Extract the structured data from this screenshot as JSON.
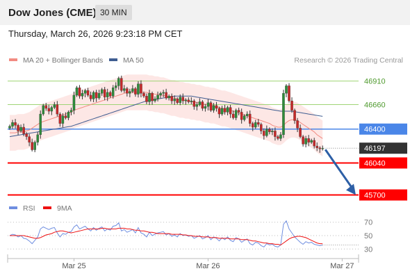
{
  "header": {
    "title": "Dow Jones (CME)",
    "timeframe": "30 MIN"
  },
  "timestamp": "Thursday, March 26, 2026 9:23:18 PM CET",
  "colors": {
    "up": "#2e8b3a",
    "down": "#c62828",
    "current_price": "#333333",
    "support": "#ff0000",
    "pivot": "#4a86e8",
    "resistance_line": "#9fd475",
    "resistance_text": "#4f9a2e",
    "ma20": "#f28b82",
    "bollinger_fill": "#fde3e1",
    "ma50": "#3f5d91",
    "rsi": "#6f8ee0",
    "rsi_ma": "#ee1111",
    "forecast_arrow": "#2d5fa6"
  },
  "chart_data": [
    {
      "type": "line",
      "title": "",
      "legend": [
        {
          "label": "MA 20 + Bollinger Bands",
          "color": "#f28b82"
        },
        {
          "label": "MA 50",
          "color": "#3f5d91"
        }
      ],
      "credit": "Research © 2026 Trading Central",
      "x_ticks": [
        {
          "label": "Mar 25",
          "index": 23
        },
        {
          "label": "Mar 26",
          "index": 71
        },
        {
          "label": "Mar 27",
          "index": 119
        }
      ],
      "ylim": [
        45630,
        47070
      ],
      "price_levels": [
        {
          "label": "46910",
          "value": 46910,
          "kind": "resistance"
        },
        {
          "label": "46660",
          "value": 46660,
          "kind": "resistance"
        },
        {
          "label": "46400",
          "value": 46400,
          "kind": "pivot"
        },
        {
          "label": "46197",
          "value": 46197,
          "kind": "current"
        },
        {
          "label": "46040",
          "value": 46040,
          "kind": "support"
        },
        {
          "label": "45700",
          "value": 45700,
          "kind": "support"
        }
      ],
      "forecast_target": 45700,
      "close": [
        46430,
        46470,
        46440,
        46380,
        46420,
        46350,
        46320,
        46260,
        46180,
        46260,
        46340,
        46560,
        46650,
        46620,
        46590,
        46630,
        46660,
        46560,
        46460,
        46540,
        46520,
        46580,
        46600,
        46760,
        46840,
        46750,
        46780,
        46810,
        46760,
        46720,
        46790,
        46730,
        46780,
        46820,
        46740,
        46790,
        46750,
        46840,
        46860,
        46940,
        46810,
        46830,
        46780,
        46800,
        46830,
        46770,
        46880,
        46780,
        46750,
        46690,
        46780,
        46700,
        46720,
        46760,
        46780,
        46790,
        46730,
        46750,
        46700,
        46720,
        46680,
        46740,
        46700,
        46710,
        46690,
        46700,
        46640,
        46660,
        46690,
        46620,
        46640,
        46680,
        46600,
        46650,
        46620,
        46560,
        46620,
        46580,
        46630,
        46560,
        46520,
        46600,
        46580,
        46500,
        46540,
        46560,
        46460,
        46420,
        46470,
        46450,
        46380,
        46330,
        46400,
        46370,
        46380,
        46320,
        46300,
        46340,
        46780,
        46860,
        46700,
        46600,
        46490,
        46410,
        46320,
        46240,
        46300,
        46260,
        46280,
        46220,
        46200,
        46190,
        46197
      ],
      "ma20": [
        46360,
        46360,
        46360,
        46370,
        46370,
        46370,
        46380,
        46390,
        46410,
        46430,
        46450,
        46470,
        46480,
        46490,
        46500,
        46510,
        46520,
        46530,
        46540,
        46550,
        46560,
        46570,
        46580,
        46600,
        46610,
        46620,
        46630,
        46640,
        46650,
        46660,
        46670,
        46680,
        46690,
        46700,
        46710,
        46720,
        46730,
        46740,
        46750,
        46760,
        46770,
        46780,
        46790,
        46790,
        46790,
        46790,
        46790,
        46790,
        46790,
        46790,
        46780,
        46780,
        46770,
        46770,
        46760,
        46760,
        46750,
        46740,
        46730,
        46730,
        46720,
        46710,
        46710,
        46700,
        46700,
        46690,
        46690,
        46680,
        46680,
        46670,
        46660,
        46660,
        46650,
        46650,
        46640,
        46630,
        46620,
        46620,
        46610,
        46600,
        46590,
        46580,
        46570,
        46560,
        46550,
        46540,
        46530,
        46520,
        46510,
        46500,
        46490,
        46480,
        46470,
        46460,
        46440,
        46430,
        46420,
        46420,
        46440,
        46470,
        46490,
        46500,
        46500,
        46490,
        46470,
        46450,
        46430,
        46410,
        46390,
        46370,
        46340,
        46320,
        46300
      ],
      "bb_width": 190,
      "ma50": [
        46320,
        46325,
        46330,
        46335,
        46340,
        46345,
        46350,
        46355,
        46360,
        46365,
        46370,
        46375,
        46380,
        46385,
        46390,
        46395,
        46400,
        46405,
        46410,
        46415,
        46420,
        46425,
        46430,
        46440,
        46450,
        46460,
        46470,
        46480,
        46490,
        46500,
        46510,
        46520,
        46530,
        46540,
        46550,
        46560,
        46570,
        46580,
        46590,
        46600,
        46610,
        46620,
        46630,
        46640,
        46650,
        46660,
        46670,
        46680,
        46690,
        46700,
        46705,
        46710,
        46715,
        46720,
        46725,
        46730,
        46735,
        46740,
        46745,
        46750,
        46750,
        46750,
        46750,
        46750,
        46750,
        46750,
        46745,
        46740,
        46735,
        46730,
        46725,
        46720,
        46715,
        46710,
        46705,
        46700,
        46695,
        46690,
        46685,
        46680,
        46675,
        46670,
        46665,
        46660,
        46655,
        46650,
        46645,
        46640,
        46635,
        46630,
        46625,
        46620,
        46615,
        46610,
        46605,
        46600,
        46595,
        46590,
        46590,
        46590,
        46590,
        46590,
        46585,
        46580,
        46575,
        46570,
        46565,
        46560,
        46555,
        46550,
        46545,
        46540,
        46535
      ]
    },
    {
      "type": "line",
      "title": "",
      "legend": [
        {
          "label": "RSI",
          "color": "#6f8ee0"
        },
        {
          "label": "9MA",
          "color": "#ee1111"
        }
      ],
      "ylim": [
        22,
        78
      ],
      "y_ticks": [
        {
          "label": "70",
          "value": 70
        },
        {
          "label": "50",
          "value": 50
        },
        {
          "label": "30",
          "value": 30
        }
      ],
      "rsi": [
        50,
        52,
        51,
        48,
        50,
        46,
        45,
        42,
        38,
        43,
        48,
        60,
        63,
        61,
        59,
        61,
        62,
        54,
        48,
        53,
        52,
        55,
        56,
        63,
        66,
        60,
        62,
        64,
        60,
        57,
        62,
        58,
        61,
        63,
        57,
        60,
        58,
        64,
        65,
        69,
        57,
        59,
        55,
        57,
        59,
        54,
        62,
        54,
        52,
        48,
        55,
        50,
        52,
        54,
        55,
        56,
        51,
        53,
        49,
        51,
        48,
        53,
        50,
        51,
        49,
        50,
        46,
        48,
        50,
        45,
        47,
        50,
        44,
        48,
        46,
        42,
        47,
        44,
        48,
        43,
        41,
        47,
        45,
        40,
        43,
        45,
        38,
        36,
        40,
        39,
        35,
        33,
        38,
        36,
        37,
        34,
        33,
        36,
        67,
        72,
        60,
        54,
        48,
        44,
        40,
        37,
        41,
        39,
        40,
        37,
        36,
        35,
        36
      ],
      "rsi_ma": [
        50,
        50,
        50,
        50,
        50,
        50,
        49,
        48,
        47,
        46,
        46,
        47,
        49,
        51,
        52,
        53,
        55,
        56,
        57,
        57,
        56,
        55,
        54,
        55,
        56,
        57,
        58,
        59,
        60,
        60,
        60,
        60,
        60,
        61,
        61,
        60,
        60,
        60,
        60,
        61,
        61,
        61,
        60,
        60,
        59,
        58,
        58,
        57,
        57,
        56,
        55,
        55,
        54,
        53,
        53,
        53,
        53,
        53,
        52,
        52,
        52,
        52,
        51,
        51,
        50,
        50,
        49,
        49,
        49,
        48,
        48,
        48,
        47,
        47,
        47,
        46,
        46,
        46,
        46,
        45,
        45,
        45,
        45,
        44,
        44,
        44,
        43,
        42,
        42,
        41,
        40,
        39,
        39,
        38,
        38,
        37,
        37,
        36,
        39,
        42,
        45,
        47,
        48,
        49,
        49,
        48,
        47,
        45,
        43,
        41,
        39,
        38,
        38
      ]
    }
  ]
}
